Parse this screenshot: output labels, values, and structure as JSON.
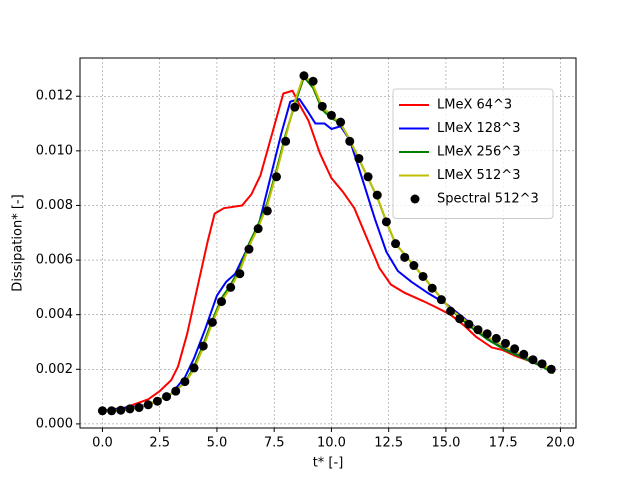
{
  "chart_data": {
    "type": "line",
    "xlabel": "t* [-]",
    "ylabel": "Dissipation* [-]",
    "xlim": [
      -0.98,
      20.68
    ],
    "ylim": [
      -0.00015,
      0.0134
    ],
    "xticks": [
      {
        "value": 0,
        "label": "0.0"
      },
      {
        "value": 2.5,
        "label": "2.5"
      },
      {
        "value": 5,
        "label": "5.0"
      },
      {
        "value": 7.5,
        "label": "7.5"
      },
      {
        "value": 10,
        "label": "10.0"
      },
      {
        "value": 12.5,
        "label": "12.5"
      },
      {
        "value": 15,
        "label": "15.0"
      },
      {
        "value": 17.5,
        "label": "17.5"
      },
      {
        "value": 20,
        "label": "20.0"
      }
    ],
    "yticks": [
      {
        "value": 0,
        "label": "0.000"
      },
      {
        "value": 0.002,
        "label": "0.002"
      },
      {
        "value": 0.004,
        "label": "0.004"
      },
      {
        "value": 0.006,
        "label": "0.006"
      },
      {
        "value": 0.008,
        "label": "0.008"
      },
      {
        "value": 0.01,
        "label": "0.010"
      },
      {
        "value": 0.012,
        "label": "0.012"
      }
    ],
    "grid": true,
    "legend": "upper right",
    "series": [
      {
        "name": "LMeX 64^3",
        "color": "#ff0000",
        "mode": "line",
        "x": [
          0,
          1,
          2,
          2.5,
          3,
          3.3,
          3.7,
          4.2,
          4.6,
          4.9,
          5.3,
          6.1,
          6.5,
          6.9,
          7.4,
          7.9,
          8.3,
          8.6,
          9.0,
          9.5,
          10,
          10.5,
          11,
          11.6,
          12.1,
          12.6,
          13.2,
          14,
          14.5,
          15.2,
          15.8,
          16.3,
          17,
          17.5,
          18,
          19,
          19.7
        ],
        "values": [
          0.00048,
          0.0006,
          0.0009,
          0.0012,
          0.0016,
          0.0021,
          0.0033,
          0.0052,
          0.0067,
          0.0077,
          0.0079,
          0.008,
          0.0084,
          0.0091,
          0.0106,
          0.0121,
          0.0122,
          0.0117,
          0.0111,
          0.0099,
          0.009,
          0.0085,
          0.0079,
          0.0067,
          0.0057,
          0.0051,
          0.0048,
          0.0045,
          0.0043,
          0.004,
          0.0036,
          0.0032,
          0.0028,
          0.0027,
          0.0025,
          0.0022,
          0.0019
        ]
      },
      {
        "name": "LMeX 128^3",
        "color": "#0000ff",
        "mode": "line",
        "x": [
          0,
          2,
          3,
          3.6,
          4,
          4.5,
          5,
          5.4,
          5.8,
          6.2,
          6.8,
          7.3,
          7.8,
          8.2,
          8.6,
          9.0,
          9.3,
          9.7,
          10.0,
          10.4,
          10.8,
          11.3,
          11.9,
          12.4,
          12.9,
          13.5,
          14.2,
          15,
          15.6,
          16.2,
          17,
          18,
          19,
          19.7
        ],
        "values": [
          0.00048,
          0.0007,
          0.0011,
          0.0017,
          0.0024,
          0.0035,
          0.0047,
          0.0052,
          0.0055,
          0.0062,
          0.0072,
          0.0089,
          0.0106,
          0.0118,
          0.0119,
          0.0114,
          0.011,
          0.011,
          0.0108,
          0.0109,
          0.0104,
          0.0091,
          0.0075,
          0.0063,
          0.0056,
          0.0052,
          0.0048,
          0.0044,
          0.004,
          0.0036,
          0.003,
          0.0026,
          0.0022,
          0.0019
        ]
      },
      {
        "name": "LMeX 256^3",
        "color": "#008000",
        "mode": "line",
        "x": [
          0,
          1,
          2,
          3,
          3.6,
          4,
          4.4,
          4.8,
          5.2,
          5.6,
          6,
          6.4,
          6.8,
          7.2,
          7.6,
          8,
          8.4,
          8.8,
          9.2,
          9.6,
          10,
          10.4,
          10.8,
          11.2,
          11.6,
          12,
          12.4,
          12.8,
          13.6,
          14.4,
          15.2,
          16,
          16.8,
          17.6,
          18.4,
          19.2,
          19.7
        ],
        "values": [
          0.00048,
          0.00052,
          0.0007,
          0.0011,
          0.0015,
          0.0021,
          0.0029,
          0.0038,
          0.0046,
          0.0051,
          0.0057,
          0.0066,
          0.0073,
          0.0081,
          0.0093,
          0.0106,
          0.0117,
          0.0127,
          0.0123,
          0.0115,
          0.0112,
          0.011,
          0.0104,
          0.0097,
          0.009,
          0.0083,
          0.0074,
          0.0066,
          0.0058,
          0.005,
          0.0042,
          0.0036,
          0.0031,
          0.0027,
          0.0024,
          0.0021,
          0.00185
        ]
      },
      {
        "name": "LMeX 512^3",
        "color": "#bfbf00",
        "mode": "line",
        "x": [
          0,
          1,
          2,
          3,
          3.6,
          4,
          4.4,
          4.8,
          5.2,
          5.6,
          6,
          6.4,
          6.8,
          7.2,
          7.6,
          8,
          8.4,
          8.8,
          9.2,
          9.6,
          10,
          10.4,
          10.8,
          11.2,
          11.6,
          12,
          12.4,
          12.8,
          13.6,
          14.4,
          15.2,
          16,
          16.8,
          17.6,
          18.4,
          19.2,
          19.7
        ],
        "values": [
          0.00048,
          0.00052,
          0.0007,
          0.0011,
          0.0015,
          0.002,
          0.0028,
          0.0037,
          0.0045,
          0.005,
          0.0056,
          0.0065,
          0.0072,
          0.008,
          0.0092,
          0.0105,
          0.0118,
          0.0128,
          0.0124,
          0.0116,
          0.0113,
          0.011,
          0.0104,
          0.0097,
          0.009,
          0.0083,
          0.0074,
          0.0066,
          0.0058,
          0.005,
          0.0042,
          0.0037,
          0.0032,
          0.0028,
          0.0025,
          0.0022,
          0.0019
        ]
      },
      {
        "name": "Spectral 512^3",
        "color": "#000000",
        "mode": "markers",
        "x": [
          0,
          0.4,
          0.8,
          1.2,
          1.6,
          2.0,
          2.4,
          2.8,
          3.2,
          3.6,
          4.0,
          4.4,
          4.8,
          5.2,
          5.6,
          6.0,
          6.4,
          6.8,
          7.2,
          7.6,
          8.0,
          8.4,
          8.8,
          9.2,
          9.6,
          10.0,
          10.4,
          10.8,
          11.2,
          11.6,
          12.0,
          12.4,
          12.8,
          13.2,
          13.6,
          14.0,
          14.4,
          14.8,
          15.2,
          15.6,
          16.0,
          16.4,
          16.8,
          17.2,
          17.6,
          18.0,
          18.4,
          18.8,
          19.2,
          19.6
        ],
        "values": [
          0.00048,
          0.00048,
          0.0005,
          0.00055,
          0.0006,
          0.0007,
          0.00083,
          0.001,
          0.0012,
          0.00155,
          0.00205,
          0.00285,
          0.00372,
          0.00448,
          0.005,
          0.0055,
          0.0064,
          0.00715,
          0.0078,
          0.00905,
          0.01035,
          0.0116,
          0.01275,
          0.01255,
          0.01163,
          0.0113,
          0.01105,
          0.01035,
          0.00972,
          0.00905,
          0.00838,
          0.0074,
          0.0066,
          0.0061,
          0.0058,
          0.0054,
          0.00497,
          0.00455,
          0.00413,
          0.00385,
          0.00365,
          0.00345,
          0.0033,
          0.00313,
          0.00295,
          0.00275,
          0.00255,
          0.00235,
          0.0022,
          0.002
        ]
      }
    ]
  }
}
